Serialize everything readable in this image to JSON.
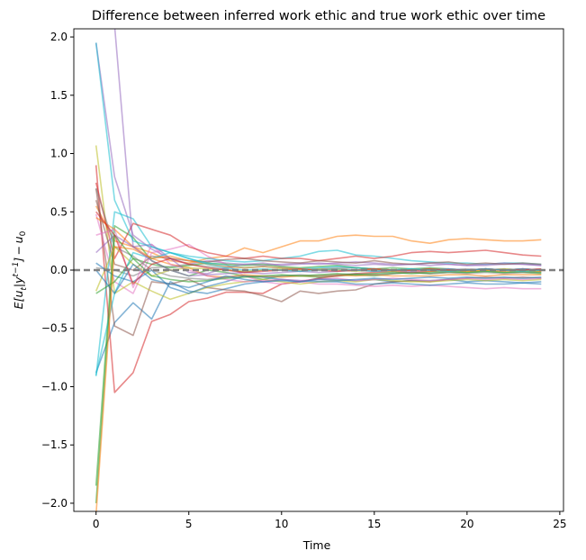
{
  "chart_data": {
    "type": "line",
    "title": "Difference between inferred work ethic and true work ethic over time",
    "xlabel": "Time",
    "ylabel": "E[u_t|y^{t-1}] - u_0",
    "xlim": [
      -1.2,
      25.2
    ],
    "ylim": [
      -2.07,
      2.07
    ],
    "xticks": [
      0,
      5,
      10,
      15,
      20,
      25
    ],
    "yticks": [
      -2.0,
      -1.5,
      -1.0,
      -0.5,
      0.0,
      0.5,
      1.0,
      1.5,
      2.0
    ],
    "grid": false,
    "legend": "none",
    "reference_line": {
      "y": 0,
      "style": "dashed",
      "color": "#808080"
    },
    "x": [
      0,
      1,
      2,
      3,
      4,
      5,
      6,
      7,
      8,
      9,
      10,
      11,
      12,
      13,
      14,
      15,
      16,
      17,
      18,
      19,
      20,
      21,
      22,
      23,
      24
    ],
    "series": [
      {
        "color": "#1f77b4",
        "values": [
          -0.88,
          -0.45,
          -0.28,
          -0.42,
          -0.1,
          -0.18,
          -0.2,
          -0.16,
          -0.12,
          -0.1,
          -0.08,
          -0.1,
          -0.07,
          -0.08,
          -0.09,
          -0.08,
          -0.1,
          -0.09,
          -0.09,
          -0.08,
          -0.1,
          -0.09,
          -0.1,
          -0.11,
          -0.1
        ]
      },
      {
        "color": "#ff7f0e",
        "values": [
          0.55,
          0.25,
          0.2,
          0.15,
          0.08,
          0.06,
          0.1,
          0.12,
          0.19,
          0.15,
          0.2,
          0.25,
          0.25,
          0.29,
          0.3,
          0.29,
          0.29,
          0.25,
          0.23,
          0.26,
          0.27,
          0.26,
          0.25,
          0.25,
          0.26
        ]
      },
      {
        "color": "#2ca02c",
        "values": [
          -1.85,
          0.38,
          0.28,
          0.08,
          0.0,
          -0.05,
          0.0,
          -0.02,
          -0.05,
          -0.08,
          -0.05,
          -0.05,
          -0.06,
          -0.05,
          -0.04,
          -0.05,
          -0.03,
          -0.02,
          -0.03,
          -0.02,
          -0.02,
          -0.01,
          -0.02,
          -0.02,
          -0.03
        ]
      },
      {
        "color": "#d62728",
        "values": [
          0.9,
          -1.05,
          -0.88,
          -0.44,
          -0.38,
          -0.27,
          -0.24,
          -0.19,
          -0.19,
          -0.2,
          -0.12,
          -0.1,
          -0.07,
          -0.05,
          -0.03,
          -0.02,
          -0.01,
          -0.02,
          -0.01,
          0.0,
          0.0,
          0.01,
          0.0,
          0.01,
          0.0
        ]
      },
      {
        "color": "#9467bd",
        "values": [
          1.95,
          0.8,
          0.3,
          0.18,
          0.1,
          0.05,
          0.08,
          0.06,
          0.05,
          0.04,
          0.05,
          0.06,
          0.05,
          0.06,
          0.07,
          0.06,
          0.05,
          0.05,
          0.04,
          0.05,
          0.04,
          0.04,
          0.05,
          0.05,
          0.04
        ]
      },
      {
        "color": "#8c564b",
        "values": [
          0.7,
          -0.48,
          -0.56,
          -0.1,
          -0.12,
          -0.08,
          -0.15,
          -0.17,
          -0.18,
          -0.22,
          -0.27,
          -0.18,
          -0.2,
          -0.18,
          -0.17,
          -0.12,
          -0.1,
          -0.09,
          -0.1,
          -0.08,
          -0.07,
          -0.06,
          -0.07,
          -0.06,
          -0.07
        ]
      },
      {
        "color": "#e377c2",
        "values": [
          0.48,
          -0.1,
          -0.2,
          0.15,
          0.18,
          0.22,
          0.12,
          0.05,
          -0.05,
          -0.1,
          -0.12,
          -0.1,
          -0.12,
          -0.12,
          -0.13,
          -0.14,
          -0.13,
          -0.14,
          -0.13,
          -0.14,
          -0.15,
          -0.16,
          -0.15,
          -0.16,
          -0.16
        ]
      },
      {
        "color": "#7f7f7f",
        "values": [
          0.02,
          0.0,
          -0.05,
          0.02,
          0.03,
          0.05,
          0.03,
          0.01,
          -0.02,
          0.0,
          0.0,
          -0.01,
          0.01,
          0.02,
          0.02,
          0.01,
          0.0,
          0.0,
          0.01,
          0.0,
          0.01,
          0.0,
          0.01,
          0.0,
          0.01
        ]
      },
      {
        "color": "#bcbd22",
        "values": [
          1.07,
          -0.2,
          -0.1,
          -0.18,
          -0.25,
          -0.2,
          -0.15,
          -0.12,
          -0.1,
          -0.08,
          -0.1,
          -0.12,
          -0.1,
          -0.09,
          -0.1,
          -0.08,
          -0.09,
          -0.1,
          -0.1,
          -0.09,
          -0.08,
          -0.09,
          -0.08,
          -0.09,
          -0.08
        ]
      },
      {
        "color": "#17becf",
        "values": [
          -0.91,
          0.5,
          0.44,
          0.2,
          0.15,
          0.12,
          0.1,
          0.08,
          0.07,
          0.08,
          0.1,
          0.12,
          0.16,
          0.17,
          0.13,
          0.12,
          0.1,
          0.08,
          0.07,
          0.06,
          0.06,
          0.05,
          0.06,
          0.06,
          0.05
        ]
      },
      {
        "color": "#1f77b4",
        "values": [
          0.06,
          -0.05,
          -0.1,
          0.0,
          -0.15,
          -0.2,
          -0.14,
          -0.1,
          -0.05,
          -0.06,
          -0.08,
          -0.09,
          -0.1,
          -0.1,
          -0.12,
          -0.12,
          -0.11,
          -0.12,
          -0.13,
          -0.12,
          -0.11,
          -0.12,
          -0.12,
          -0.11,
          -0.12
        ]
      },
      {
        "color": "#ff7f0e",
        "values": [
          0.45,
          0.35,
          0.2,
          0.1,
          0.05,
          0.02,
          -0.05,
          -0.06,
          -0.04,
          -0.05,
          -0.06,
          -0.05,
          -0.05,
          -0.04,
          -0.05,
          -0.04,
          -0.05,
          -0.05,
          -0.05,
          -0.04,
          -0.04,
          -0.05,
          -0.04,
          -0.04,
          -0.04
        ]
      },
      {
        "color": "#2ca02c",
        "values": [
          -0.2,
          -0.1,
          0.1,
          0.05,
          0.02,
          0.04,
          0.06,
          0.05,
          0.04,
          0.05,
          0.03,
          0.02,
          0.03,
          0.04,
          0.02,
          0.01,
          0.02,
          0.01,
          0.02,
          0.01,
          0.0,
          0.01,
          0.0,
          0.01,
          0.0
        ]
      },
      {
        "color": "#d62728",
        "values": [
          0.75,
          0.1,
          0.4,
          0.35,
          0.3,
          0.2,
          0.15,
          0.12,
          0.1,
          0.12,
          0.1,
          0.1,
          0.08,
          0.1,
          0.12,
          0.1,
          0.12,
          0.15,
          0.16,
          0.15,
          0.16,
          0.17,
          0.15,
          0.13,
          0.12
        ]
      },
      {
        "color": "#9467bd",
        "values": [
          0.15,
          0.3,
          0.2,
          0.22,
          0.1,
          -0.02,
          -0.03,
          0.02,
          0.05,
          0.06,
          0.04,
          0.05,
          0.06,
          0.05,
          0.04,
          0.05,
          0.04,
          0.05,
          0.06,
          0.05,
          0.04,
          0.05,
          0.06,
          0.05,
          0.04
        ]
      },
      {
        "color": "#8c564b",
        "values": [
          0.6,
          0.05,
          0.0,
          0.12,
          0.1,
          0.08,
          0.07,
          0.09,
          0.1,
          0.08,
          0.07,
          0.06,
          0.08,
          0.07,
          0.06,
          0.08,
          0.06,
          0.05,
          0.06,
          0.07,
          0.05,
          0.06,
          0.05,
          0.06,
          0.05
        ]
      },
      {
        "color": "#e377c2",
        "values": [
          0.3,
          0.35,
          -0.15,
          0.22,
          0.05,
          0.0,
          -0.05,
          -0.08,
          -0.1,
          -0.09,
          -0.08,
          -0.09,
          -0.08,
          -0.07,
          -0.09,
          -0.08,
          -0.07,
          -0.08,
          -0.09,
          -0.08,
          -0.07,
          -0.08,
          -0.07,
          -0.08,
          -0.07
        ]
      },
      {
        "color": "#7f7f7f",
        "values": [
          0.7,
          0.2,
          0.12,
          0.0,
          -0.05,
          -0.07,
          -0.08,
          -0.06,
          -0.05,
          -0.06,
          -0.05,
          -0.04,
          -0.05,
          -0.04,
          -0.03,
          -0.04,
          -0.03,
          -0.02,
          -0.03,
          -0.02,
          -0.03,
          -0.02,
          -0.03,
          -0.02,
          -0.02
        ]
      },
      {
        "color": "#bcbd22",
        "values": [
          -0.18,
          0.2,
          0.05,
          -0.05,
          0.0,
          0.02,
          0.01,
          0.0,
          -0.01,
          0.0,
          0.01,
          0.0,
          0.01,
          0.0,
          -0.01,
          0.0,
          -0.01,
          0.0,
          0.01,
          0.0,
          -0.01,
          0.0,
          0.01,
          0.0,
          -0.01
        ]
      },
      {
        "color": "#17becf",
        "values": [
          -0.9,
          -0.2,
          0.15,
          0.1,
          0.15,
          0.1,
          0.06,
          0.04,
          0.02,
          0.03,
          0.02,
          0.01,
          0.02,
          0.03,
          0.02,
          0.01,
          0.0,
          0.01,
          0.0,
          0.01,
          0.0,
          0.01,
          0.0,
          0.01,
          0.0
        ]
      },
      {
        "color": "#2ca02c",
        "values": [
          -2.0,
          0.3,
          0.1,
          -0.05,
          -0.08,
          -0.1,
          -0.09,
          -0.07,
          -0.06,
          -0.05,
          -0.04,
          -0.05,
          -0.04,
          -0.03,
          -0.04,
          -0.03,
          -0.02,
          -0.03,
          -0.02,
          -0.01,
          -0.02,
          -0.01,
          -0.02,
          -0.01,
          -0.02
        ]
      },
      {
        "color": "#1f77b4",
        "values": [
          0.0,
          -0.2,
          0.05,
          -0.08,
          -0.12,
          -0.15,
          -0.1,
          -0.05,
          -0.08,
          -0.1,
          -0.09,
          -0.1,
          -0.08,
          -0.09,
          -0.08,
          -0.07,
          -0.08,
          -0.07,
          -0.06,
          -0.07,
          -0.06,
          -0.07,
          -0.06,
          -0.07,
          -0.06
        ]
      },
      {
        "color": "#ff7f0e",
        "values": [
          -2.1,
          0.2,
          0.18,
          0.1,
          0.12,
          0.08,
          0.05,
          0.03,
          0.02,
          0.03,
          0.02,
          0.01,
          0.0,
          0.01,
          0.0,
          0.01,
          0.0,
          0.0,
          -0.01,
          0.0,
          -0.01,
          0.0,
          -0.01,
          0.0,
          -0.01
        ]
      },
      {
        "color": "#9467bd",
        "values": [
          2.1,
          2.1,
          0.2,
          0.08,
          0.0,
          -0.05,
          -0.04,
          -0.03,
          -0.02,
          -0.03,
          -0.02,
          -0.01,
          -0.02,
          -0.01,
          0.0,
          -0.01,
          0.0,
          -0.01,
          0.0,
          0.01,
          0.0,
          0.01,
          0.0,
          0.01,
          0.0
        ]
      },
      {
        "color": "#d62728",
        "values": [
          0.5,
          0.3,
          -0.12,
          0.05,
          0.1,
          0.05,
          0.02,
          0.0,
          -0.02,
          -0.01,
          0.0,
          0.01,
          0.0,
          -0.01,
          0.0,
          0.01,
          0.0,
          0.0,
          0.01,
          0.0,
          0.0,
          0.01,
          0.0,
          0.0,
          0.01
        ]
      },
      {
        "color": "#17becf",
        "values": [
          1.95,
          0.6,
          0.25,
          0.2,
          0.15,
          0.1,
          0.05,
          0.02,
          0.0,
          0.01,
          0.0,
          -0.01,
          0.0,
          0.01,
          0.0,
          -0.01,
          0.0,
          0.01,
          0.0,
          -0.01,
          0.0,
          0.01,
          0.0,
          -0.01,
          0.0
        ]
      }
    ]
  }
}
